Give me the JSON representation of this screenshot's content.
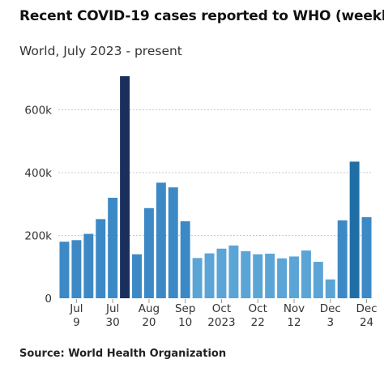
{
  "title": "Recent COVID-19 cases reported to WHO (weekly)",
  "subtitle": "World, July 2023 - present",
  "source": "Source: World Health Organization",
  "chart_data": {
    "type": "bar",
    "title": "Recent COVID-19 cases reported to WHO (weekly)",
    "subtitle": "World, July 2023 - present",
    "xlabel": "",
    "ylabel": "",
    "ylim": [
      0,
      720000
    ],
    "yticks": [
      {
        "value": 0,
        "label": "0"
      },
      {
        "value": 200000,
        "label": "200k"
      },
      {
        "value": 400000,
        "label": "400k"
      },
      {
        "value": 600000,
        "label": "600k"
      }
    ],
    "grid": "horizontal dotted",
    "values": [
      180000,
      185000,
      205000,
      252000,
      320000,
      707000,
      140000,
      287000,
      368000,
      353000,
      245000,
      128000,
      143000,
      158000,
      168000,
      150000,
      140000,
      142000,
      127000,
      133000,
      152000,
      116000,
      60000,
      248000,
      435000,
      258000
    ],
    "highlight": [
      {
        "index": 5,
        "color": "#1a2f5c"
      },
      {
        "index": 24,
        "color": "#1f6fa6"
      }
    ],
    "bar_colors": [
      "#3c89c6",
      "#3c89c6",
      "#3c89c6",
      "#3c89c6",
      "#3c89c6",
      "#1a2f5c",
      "#3c89c6",
      "#3c89c6",
      "#3c89c6",
      "#3c89c6",
      "#3c89c6",
      "#5ba4d6",
      "#5ba4d6",
      "#5ba4d6",
      "#5ba4d6",
      "#5ba4d6",
      "#5ba4d6",
      "#5ba4d6",
      "#5ba4d6",
      "#5ba4d6",
      "#5ba4d6",
      "#5ba4d6",
      "#5ba4d6",
      "#3c89c6",
      "#1f6fa6",
      "#3c89c6"
    ],
    "xticks": [
      {
        "bar": 1.5,
        "line1": "Jul",
        "line2": "9"
      },
      {
        "bar": 4.5,
        "line1": "Jul",
        "line2": "30"
      },
      {
        "bar": 7.5,
        "line1": "Aug",
        "line2": "20"
      },
      {
        "bar": 10.5,
        "line1": "Sep",
        "line2": "10"
      },
      {
        "bar": 13.5,
        "line1": "Oct",
        "line2": "2023"
      },
      {
        "bar": 16.5,
        "line1": "Oct",
        "line2": "22"
      },
      {
        "bar": 19.5,
        "line1": "Nov",
        "line2": "12"
      },
      {
        "bar": 22.5,
        "line1": "Dec",
        "line2": "3"
      },
      {
        "bar": 25.5,
        "line1": "Dec",
        "line2": "24"
      }
    ]
  }
}
